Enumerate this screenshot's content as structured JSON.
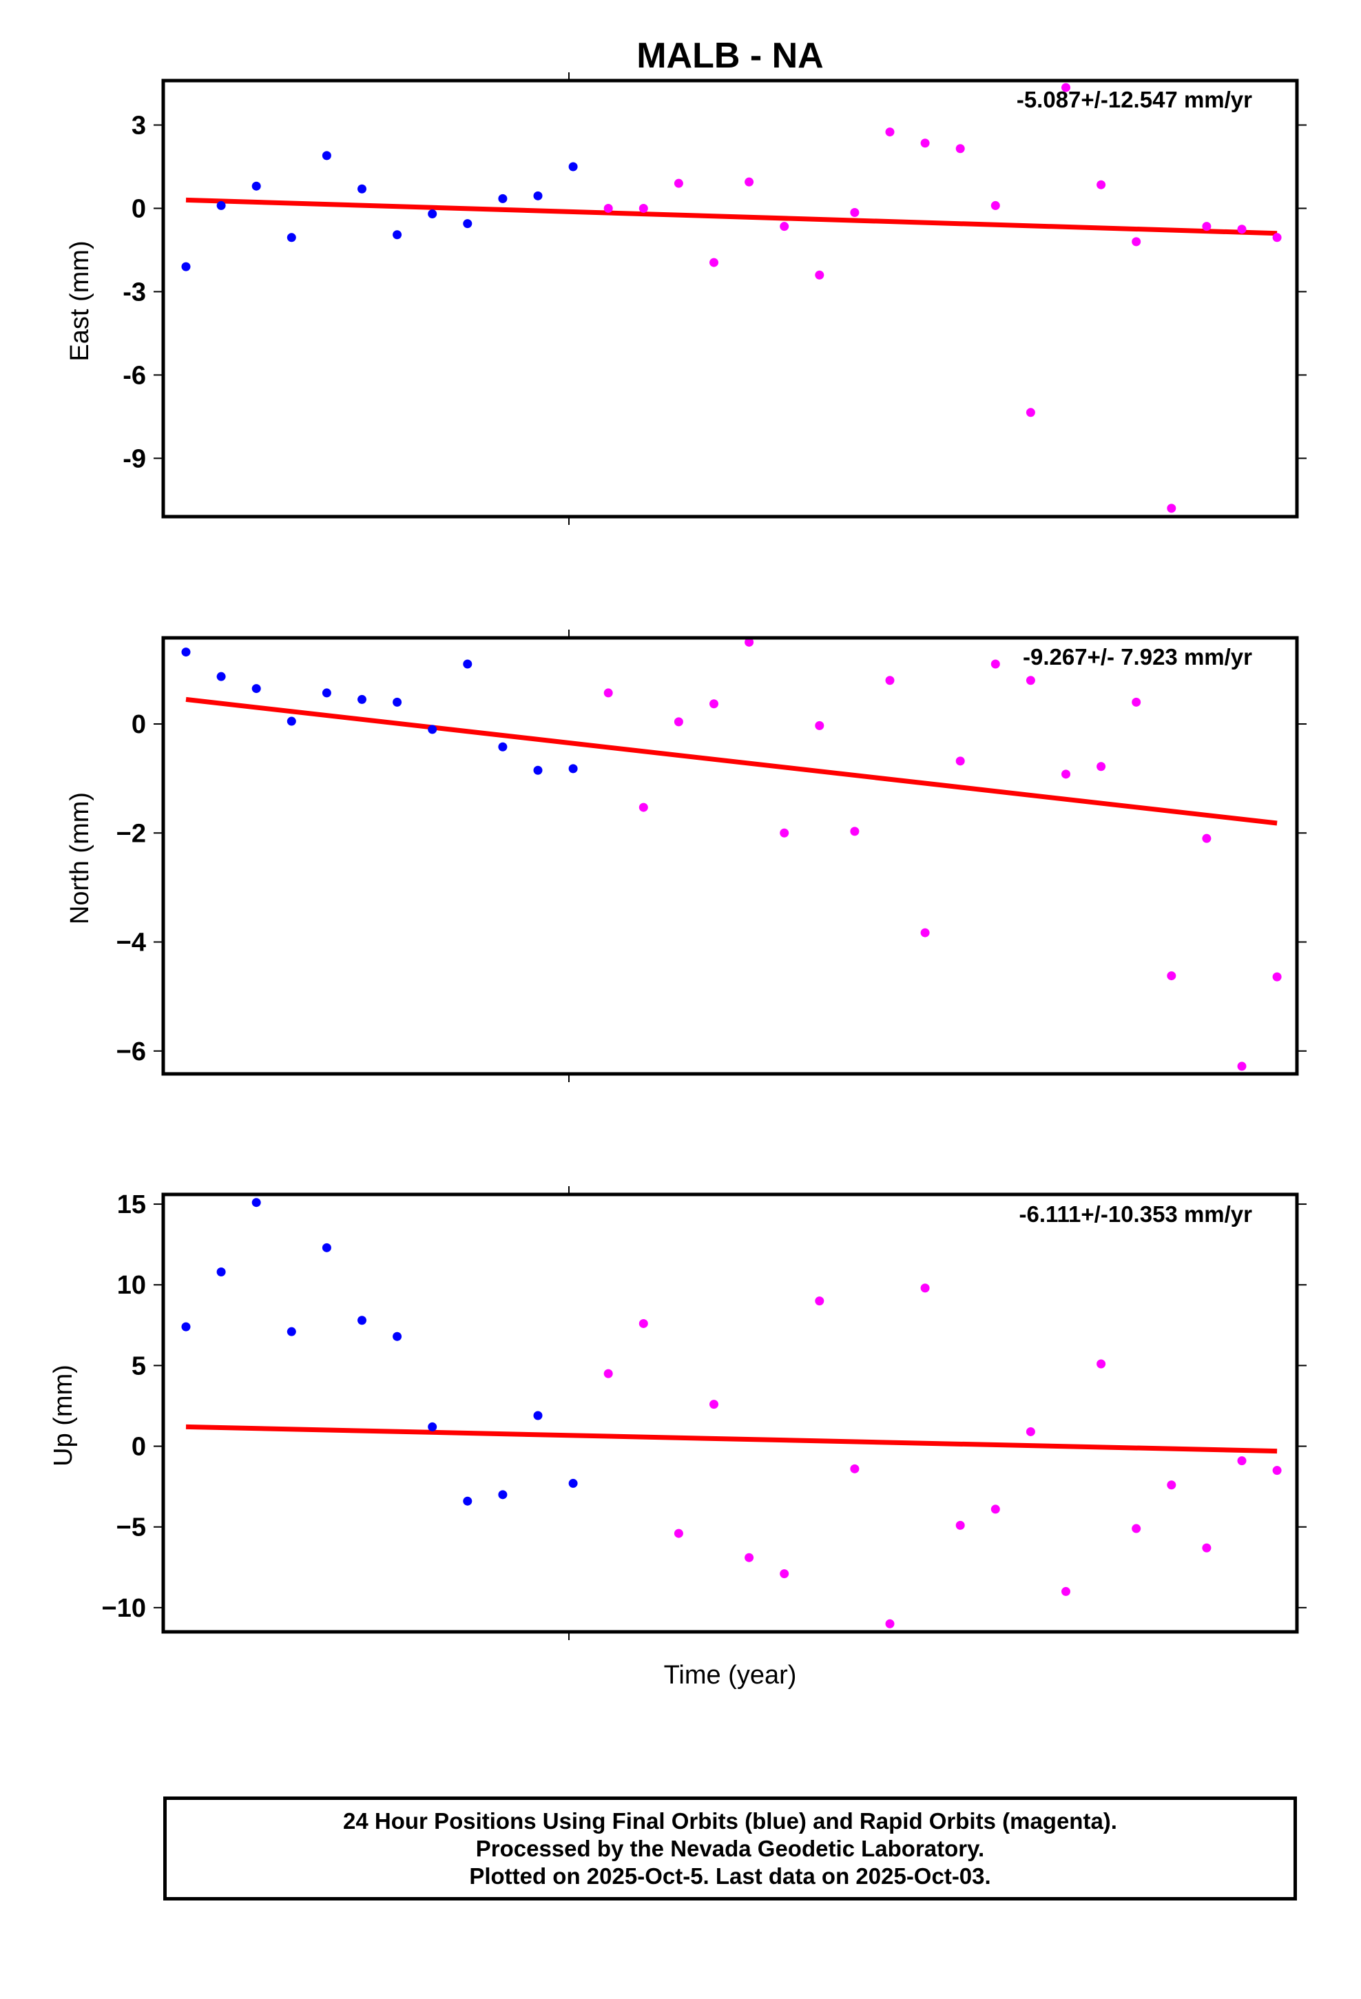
{
  "title": "MALB - NA",
  "chart_data": [
    {
      "type": "scatter",
      "panel": "east",
      "ylabel": "East (mm)",
      "rate_label": "-5.087+/-12.547 mm/yr",
      "yticks": [
        3,
        0,
        -3,
        -6,
        -9
      ],
      "ytick_labels": [
        "3",
        "0",
        "-3",
        "-6",
        "-9"
      ],
      "ylim": [
        -11.1,
        4.6
      ],
      "xlim": [
        0,
        33.2
      ],
      "trend": {
        "name": "trend",
        "color": "#ff0000",
        "x": [
          0,
          31
        ],
        "y": [
          0.3,
          -0.9
        ]
      },
      "series": [
        {
          "color": "#0000ff",
          "x": [
            0,
            1,
            2,
            3,
            4,
            5,
            6,
            7,
            8,
            9,
            10,
            11
          ],
          "y": [
            -2.1,
            0.1,
            0.8,
            -1.05,
            1.9,
            0.7,
            -0.95,
            -0.2,
            -0.55,
            0.35,
            0.45,
            1.5
          ]
        },
        {
          "color": "#ff00ff",
          "x": [
            12,
            13,
            14,
            15,
            16,
            17,
            18,
            19,
            20,
            21,
            22,
            23,
            24,
            25,
            26,
            27,
            28,
            29,
            30,
            31
          ],
          "y": [
            0.0,
            0.0,
            0.9,
            -1.95,
            0.95,
            -0.65,
            -2.4,
            -0.15,
            2.75,
            2.35,
            2.15,
            0.1,
            -7.35,
            4.35,
            0.85,
            -1.2,
            -10.8,
            -0.65,
            -0.75,
            -1.05
          ]
        }
      ]
    },
    {
      "type": "scatter",
      "panel": "north",
      "ylabel": "North (mm)",
      "rate_label": "-9.267+/- 7.923 mm/yr",
      "yticks": [
        0,
        -2,
        -4,
        -6
      ],
      "ytick_labels": [
        "0",
        "−2",
        "−4",
        "−6"
      ],
      "ylim": [
        -6.42,
        1.58
      ],
      "xlim": [
        0,
        33.2
      ],
      "trend": {
        "name": "trend",
        "color": "#ff0000",
        "x": [
          0,
          31
        ],
        "y": [
          0.45,
          -1.82
        ]
      },
      "series": [
        {
          "color": "#0000ff",
          "x": [
            0,
            1,
            2,
            3,
            4,
            5,
            6,
            7,
            8,
            9,
            10,
            11
          ],
          "y": [
            1.32,
            0.87,
            0.65,
            0.05,
            0.57,
            0.45,
            0.4,
            -0.1,
            1.1,
            -0.42,
            -0.85,
            -0.82
          ]
        },
        {
          "color": "#ff00ff",
          "x": [
            12,
            13,
            14,
            15,
            16,
            17,
            18,
            19,
            20,
            21,
            22,
            23,
            24,
            25,
            26,
            27,
            28,
            29,
            30,
            31
          ],
          "y": [
            0.57,
            -1.53,
            0.04,
            0.37,
            1.5,
            -2.0,
            -0.03,
            -1.97,
            0.8,
            -3.83,
            -0.68,
            1.1,
            0.8,
            -0.92,
            -0.78,
            0.4,
            -4.62,
            -2.1,
            -6.28,
            -4.64
          ]
        }
      ]
    },
    {
      "type": "scatter",
      "panel": "up",
      "ylabel": "Up (mm)",
      "rate_label": "-6.111+/-10.353 mm/yr",
      "yticks": [
        15,
        10,
        5,
        0,
        -5,
        -10
      ],
      "ytick_labels": [
        "15",
        "10",
        "5",
        "0",
        "−5",
        "−10"
      ],
      "ylim": [
        -11.5,
        15.6
      ],
      "xlim": [
        0,
        33.2
      ],
      "trend": {
        "name": "trend",
        "color": "#ff0000",
        "x": [
          0,
          31
        ],
        "y": [
          1.2,
          -0.3
        ]
      },
      "series": [
        {
          "color": "#0000ff",
          "x": [
            0,
            1,
            2,
            3,
            4,
            5,
            6,
            7,
            8,
            9,
            10,
            11
          ],
          "y": [
            7.4,
            10.8,
            15.1,
            7.1,
            12.3,
            7.8,
            6.8,
            1.2,
            -3.4,
            -3.0,
            1.9,
            -2.3
          ]
        },
        {
          "color": "#ff00ff",
          "x": [
            12,
            13,
            14,
            15,
            16,
            17,
            18,
            19,
            20,
            21,
            22,
            23,
            24,
            25,
            26,
            27,
            28,
            29,
            30,
            31
          ],
          "y": [
            4.5,
            7.6,
            -5.4,
            2.6,
            -6.9,
            -7.9,
            9.0,
            -1.4,
            -11.0,
            9.8,
            -4.9,
            -3.9,
            0.9,
            -9.0,
            5.1,
            -5.1,
            -2.4,
            -6.3,
            -0.9,
            -1.5
          ]
        }
      ]
    }
  ],
  "xlabel": "Time (year)",
  "footer": {
    "line1": "24 Hour Positions Using Final Orbits (blue) and Rapid Orbits (magenta).",
    "line2": "Processed by the Nevada Geodetic Laboratory.",
    "line3": "Plotted on 2025-Oct-5. Last data on 2025-Oct-03."
  }
}
